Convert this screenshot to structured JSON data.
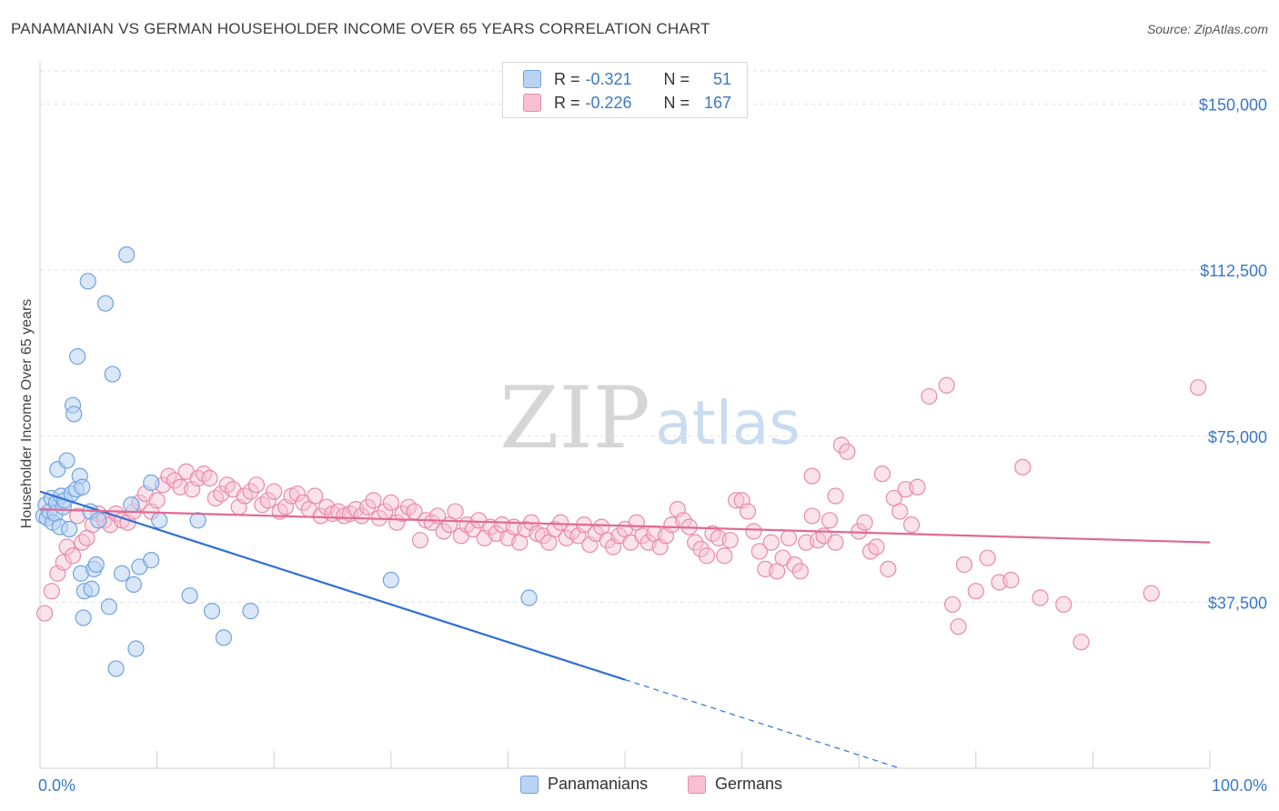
{
  "title": "PANAMANIAN VS GERMAN HOUSEHOLDER INCOME OVER 65 YEARS CORRELATION CHART",
  "source": "Source: ZipAtlas.com",
  "watermark": {
    "part1": "ZIP",
    "part2": "atlas"
  },
  "stats": [
    {
      "r_label": "R =",
      "r_value": "-0.321",
      "n_label": "N =",
      "n_value": "51",
      "color": "#6fa3e0",
      "fill": "#b9d3f3"
    },
    {
      "r_label": "R =",
      "r_value": "-0.226",
      "n_label": "N =",
      "n_value": "167",
      "color": "#e98aa8",
      "fill": "#f7c1d2"
    }
  ],
  "legend": [
    {
      "label": "Panamanians",
      "color": "#6fa3e0",
      "fill": "#b9d3f3"
    },
    {
      "label": "Germans",
      "color": "#e98aa8",
      "fill": "#f7c1d2"
    }
  ],
  "chart_data": {
    "type": "scatter",
    "title": "PANAMANIAN VS GERMAN HOUSEHOLDER INCOME OVER 65 YEARS CORRELATION CHART",
    "xlabel": "",
    "ylabel": "Householder Income Over 65 years",
    "xlim": [
      0,
      100
    ],
    "ylim": [
      0,
      157500
    ],
    "x_tick_labels": [
      "0.0%",
      "100.0%"
    ],
    "y_ticks": [
      37500,
      75000,
      112500,
      150000
    ],
    "y_tick_labels": [
      "$37,500",
      "$75,000",
      "$112,500",
      "$150,000"
    ],
    "grid": true,
    "series": [
      {
        "name": "Panamanians",
        "color": "#3a78d4",
        "points": [
          [
            0.3,
            57000
          ],
          [
            0.5,
            59500
          ],
          [
            0.6,
            56500
          ],
          [
            0.8,
            58000
          ],
          [
            1.0,
            61000
          ],
          [
            1.1,
            55500
          ],
          [
            1.3,
            57500
          ],
          [
            1.4,
            60000
          ],
          [
            1.5,
            67500
          ],
          [
            1.7,
            54500
          ],
          [
            1.8,
            61500
          ],
          [
            2.0,
            59000
          ],
          [
            2.1,
            60500
          ],
          [
            2.3,
            69500
          ],
          [
            2.5,
            54000
          ],
          [
            2.7,
            62000
          ],
          [
            2.8,
            82000
          ],
          [
            2.9,
            80000
          ],
          [
            3.1,
            63000
          ],
          [
            3.2,
            93000
          ],
          [
            3.4,
            66000
          ],
          [
            3.5,
            44000
          ],
          [
            3.6,
            63500
          ],
          [
            3.7,
            34000
          ],
          [
            3.8,
            40000
          ],
          [
            4.1,
            110000
          ],
          [
            4.3,
            58000
          ],
          [
            4.4,
            40500
          ],
          [
            4.6,
            45000
          ],
          [
            4.8,
            46000
          ],
          [
            5.0,
            56000
          ],
          [
            5.6,
            105000
          ],
          [
            5.9,
            36500
          ],
          [
            6.2,
            89000
          ],
          [
            6.5,
            22500
          ],
          [
            7.0,
            44000
          ],
          [
            7.4,
            116000
          ],
          [
            7.8,
            59500
          ],
          [
            8.0,
            41500
          ],
          [
            8.2,
            27000
          ],
          [
            8.5,
            45500
          ],
          [
            9.5,
            47000
          ],
          [
            10.2,
            56000
          ],
          [
            12.8,
            39000
          ],
          [
            13.5,
            56000
          ],
          [
            14.7,
            35500
          ],
          [
            15.7,
            29500
          ],
          [
            18.0,
            35500
          ],
          [
            30.0,
            42500
          ],
          [
            41.8,
            38500
          ],
          [
            9.5,
            64500
          ]
        ],
        "trend": {
          "x1": 0,
          "y1": 62500,
          "x2": 50,
          "y2": 20000,
          "dash_x2": 73.5,
          "dash_y2": 0
        }
      },
      {
        "name": "Germans",
        "color": "#e06a92",
        "points": [
          [
            0.4,
            35000
          ],
          [
            1.0,
            40000
          ],
          [
            1.5,
            44000
          ],
          [
            2.0,
            46500
          ],
          [
            2.3,
            50000
          ],
          [
            2.8,
            48000
          ],
          [
            3.2,
            57000
          ],
          [
            3.6,
            51000
          ],
          [
            4.0,
            52000
          ],
          [
            4.5,
            55000
          ],
          [
            5.0,
            57500
          ],
          [
            5.5,
            56000
          ],
          [
            6.0,
            55000
          ],
          [
            6.5,
            57500
          ],
          [
            7.0,
            56000
          ],
          [
            7.5,
            55500
          ],
          [
            8.0,
            58000
          ],
          [
            8.5,
            60000
          ],
          [
            9.0,
            62000
          ],
          [
            9.5,
            58000
          ],
          [
            10.0,
            60500
          ],
          [
            10.5,
            64000
          ],
          [
            11.0,
            66000
          ],
          [
            11.5,
            65000
          ],
          [
            12.0,
            63500
          ],
          [
            12.5,
            67000
          ],
          [
            13.0,
            63000
          ],
          [
            13.5,
            65500
          ],
          [
            14.0,
            66500
          ],
          [
            14.5,
            65500
          ],
          [
            15.0,
            61000
          ],
          [
            15.5,
            62000
          ],
          [
            16.0,
            64000
          ],
          [
            16.5,
            63000
          ],
          [
            17.0,
            59000
          ],
          [
            17.5,
            61500
          ],
          [
            18.0,
            62500
          ],
          [
            18.5,
            64000
          ],
          [
            19.0,
            59500
          ],
          [
            19.5,
            60500
          ],
          [
            20.0,
            62500
          ],
          [
            20.5,
            58000
          ],
          [
            21.0,
            59000
          ],
          [
            21.5,
            61500
          ],
          [
            22.0,
            62000
          ],
          [
            22.5,
            60000
          ],
          [
            23.0,
            58500
          ],
          [
            23.5,
            61500
          ],
          [
            24.0,
            57000
          ],
          [
            24.5,
            59000
          ],
          [
            25.0,
            57500
          ],
          [
            25.5,
            58000
          ],
          [
            26.0,
            57000
          ],
          [
            26.5,
            57500
          ],
          [
            27.0,
            58500
          ],
          [
            27.5,
            57000
          ],
          [
            28.0,
            59000
          ],
          [
            28.5,
            60500
          ],
          [
            29.0,
            56500
          ],
          [
            29.5,
            58000
          ],
          [
            30.0,
            60000
          ],
          [
            30.5,
            55500
          ],
          [
            31.0,
            57500
          ],
          [
            31.5,
            59000
          ],
          [
            32.0,
            58000
          ],
          [
            32.5,
            51500
          ],
          [
            33.0,
            56000
          ],
          [
            33.5,
            55500
          ],
          [
            34.0,
            57000
          ],
          [
            34.5,
            53500
          ],
          [
            35.0,
            55000
          ],
          [
            35.5,
            58000
          ],
          [
            36.0,
            52500
          ],
          [
            36.5,
            55000
          ],
          [
            37.0,
            54000
          ],
          [
            37.5,
            56000
          ],
          [
            38.0,
            52000
          ],
          [
            38.5,
            54500
          ],
          [
            39.0,
            53000
          ],
          [
            39.5,
            55000
          ],
          [
            40.0,
            52000
          ],
          [
            40.5,
            54500
          ],
          [
            41.0,
            51000
          ],
          [
            41.5,
            54000
          ],
          [
            42.0,
            55500
          ],
          [
            42.5,
            53000
          ],
          [
            43.0,
            52500
          ],
          [
            43.5,
            51000
          ],
          [
            44.0,
            54000
          ],
          [
            44.5,
            55500
          ],
          [
            45.0,
            52000
          ],
          [
            45.5,
            53500
          ],
          [
            46.0,
            52500
          ],
          [
            46.5,
            55000
          ],
          [
            47.0,
            50500
          ],
          [
            47.5,
            53000
          ],
          [
            48.0,
            54500
          ],
          [
            48.5,
            51500
          ],
          [
            49.0,
            50000
          ],
          [
            49.5,
            52500
          ],
          [
            50.0,
            54000
          ],
          [
            50.5,
            51000
          ],
          [
            51.0,
            55500
          ],
          [
            51.5,
            52500
          ],
          [
            52.0,
            51000
          ],
          [
            52.5,
            53000
          ],
          [
            53.0,
            50000
          ],
          [
            53.5,
            52500
          ],
          [
            54.0,
            55000
          ],
          [
            54.5,
            58500
          ],
          [
            55.0,
            56000
          ],
          [
            55.5,
            54500
          ],
          [
            56.0,
            51000
          ],
          [
            56.5,
            49500
          ],
          [
            57.0,
            48000
          ],
          [
            57.5,
            53000
          ],
          [
            58.0,
            52000
          ],
          [
            58.5,
            48000
          ],
          [
            59.0,
            51500
          ],
          [
            59.5,
            60500
          ],
          [
            60.0,
            60500
          ],
          [
            60.5,
            58000
          ],
          [
            61.0,
            53500
          ],
          [
            61.5,
            49000
          ],
          [
            62.0,
            45000
          ],
          [
            62.5,
            51000
          ],
          [
            63.0,
            44500
          ],
          [
            63.5,
            47500
          ],
          [
            64.0,
            52000
          ],
          [
            64.5,
            46000
          ],
          [
            65.0,
            44500
          ],
          [
            65.5,
            51000
          ],
          [
            66.0,
            57000
          ],
          [
            66.5,
            51500
          ],
          [
            67.0,
            52500
          ],
          [
            67.5,
            56000
          ],
          [
            68.0,
            51000
          ],
          [
            68.5,
            73000
          ],
          [
            69.0,
            71500
          ],
          [
            70.0,
            53500
          ],
          [
            71.0,
            49000
          ],
          [
            71.5,
            50000
          ],
          [
            72.0,
            66500
          ],
          [
            72.5,
            45000
          ],
          [
            73.0,
            61000
          ],
          [
            73.5,
            58000
          ],
          [
            74.0,
            63000
          ],
          [
            74.5,
            55000
          ],
          [
            76.0,
            84000
          ],
          [
            77.5,
            86500
          ],
          [
            78.0,
            37000
          ],
          [
            78.5,
            32000
          ],
          [
            79.0,
            46000
          ],
          [
            80.0,
            40000
          ],
          [
            81.0,
            47500
          ],
          [
            82.0,
            42000
          ],
          [
            83.0,
            42500
          ],
          [
            84.0,
            68000
          ],
          [
            85.5,
            38500
          ],
          [
            87.5,
            37000
          ],
          [
            89.0,
            28500
          ],
          [
            95.0,
            39500
          ],
          [
            99.0,
            86000
          ],
          [
            66.0,
            66000
          ],
          [
            68.0,
            61500
          ],
          [
            70.5,
            55500
          ],
          [
            75.0,
            63500
          ]
        ],
        "trend": {
          "x1": 0,
          "y1": 58500,
          "x2": 100,
          "y2": 51000
        }
      }
    ]
  }
}
